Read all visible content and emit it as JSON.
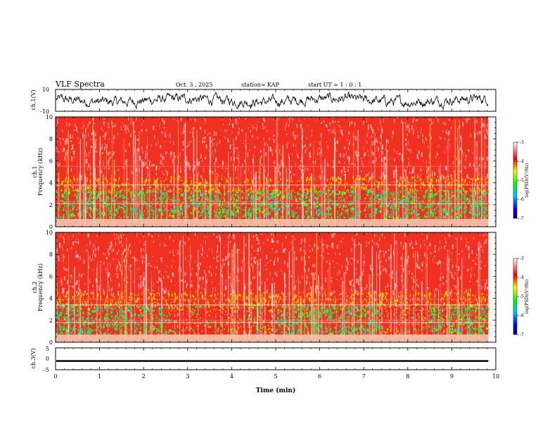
{
  "header": {
    "title": "VLF Spectra",
    "date": "Oct. 3 , 2025",
    "station": "station= KAP",
    "start": "start UT = 1 : 0 : 1"
  },
  "chart_data": [
    {
      "type": "line",
      "name": "ch1-waveform",
      "ylabel": "ch.1(V)",
      "ylim": [
        -10,
        10
      ],
      "yticks": [
        "10",
        "-10"
      ],
      "xlim": [
        0,
        10
      ],
      "x_end": 9.83,
      "description_level": "noisy voltage trace around 0 V with amplitude ~±5 V"
    },
    {
      "type": "heatmap",
      "name": "ch1-spectrogram",
      "ylabel_line1": "ch.1",
      "ylabel_line2": "Frequency (kHz)",
      "ylim": [
        0,
        10
      ],
      "yticks": [
        "0",
        "2",
        "4",
        "6",
        "8",
        "10"
      ],
      "xlim": [
        0,
        10
      ],
      "x_end": 9.83,
      "colorbar": {
        "label": "log(PSD)(V²/Hz)",
        "min": -7,
        "max": -3,
        "ticks": [
          "-3",
          "-4",
          "-5",
          "-6",
          "-7"
        ]
      }
    },
    {
      "type": "heatmap",
      "name": "ch2-spectrogram",
      "ylabel_line1": "ch.2",
      "ylabel_line2": "Frequency (kHz)",
      "ylim": [
        0,
        10
      ],
      "yticks": [
        "0",
        "2",
        "4",
        "6",
        "8",
        "10"
      ],
      "xlim": [
        0,
        10
      ],
      "x_end": 9.83,
      "colorbar": {
        "label": "log(PSD)(V²/Hz)",
        "min": -7,
        "max": -3,
        "ticks": [
          "-3",
          "-4",
          "-5",
          "-6",
          "-7"
        ]
      }
    },
    {
      "type": "line",
      "name": "ch3-waveform",
      "ylabel": "ch.3(V)",
      "ylim": [
        -5,
        5
      ],
      "yticks": [
        "5",
        "0",
        "-5"
      ],
      "xlim": [
        0,
        10
      ],
      "x_end": 9.83,
      "xlabel": "Time (min)",
      "xticks": [
        "0",
        "1",
        "2",
        "3",
        "4",
        "5",
        "6",
        "7",
        "8",
        "9",
        "10"
      ]
    }
  ]
}
